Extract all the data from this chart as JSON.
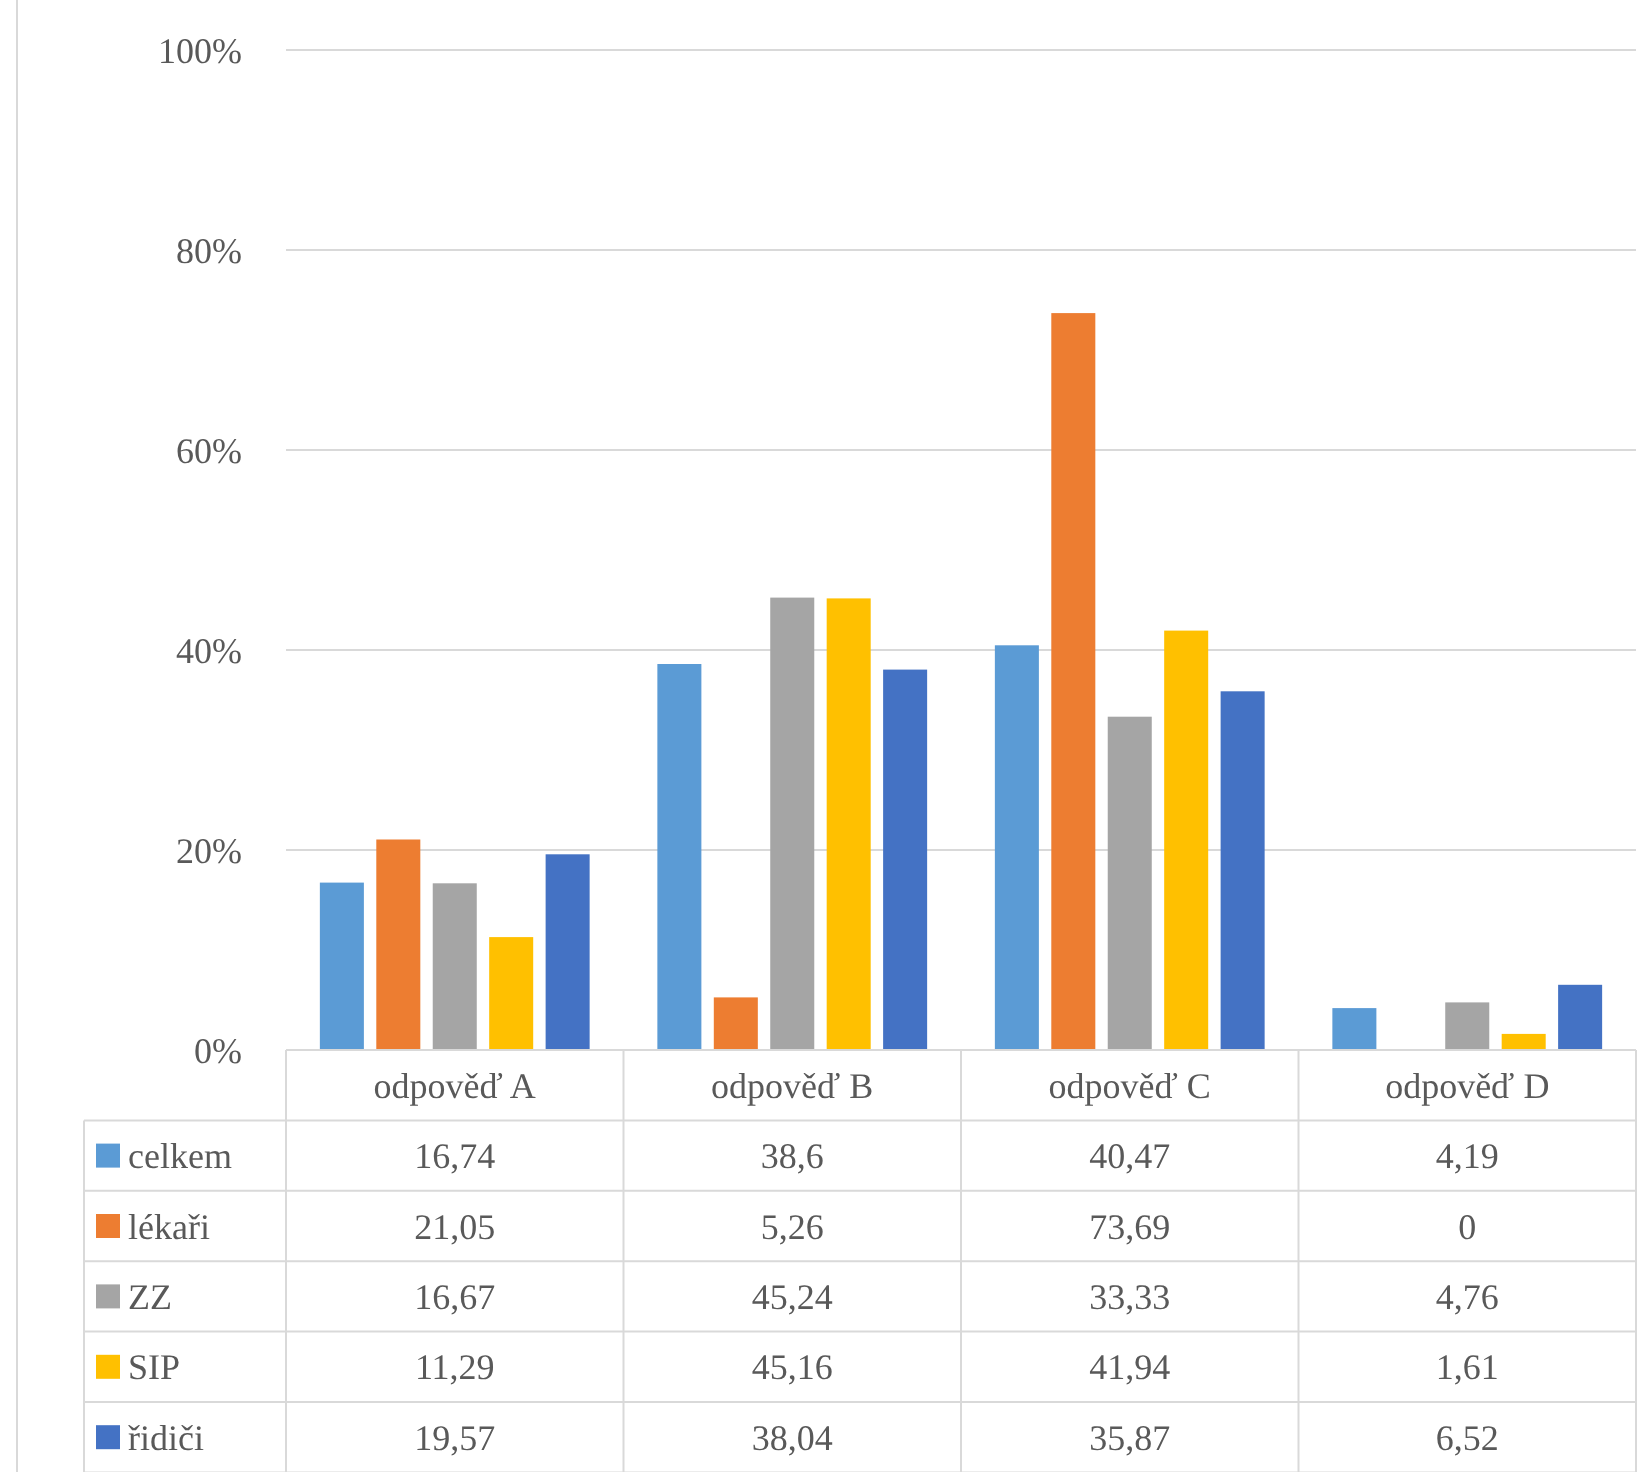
{
  "chart_data": {
    "type": "bar",
    "categories": [
      "odpověď A",
      "odpověď B",
      "odpověď C",
      "odpověď D"
    ],
    "series": [
      {
        "name": "celkem",
        "color": "#5b9bd5",
        "values": [
          16.74,
          38.6,
          40.47,
          4.19
        ],
        "value_labels": [
          "16,74",
          "38,6",
          "40,47",
          "4,19"
        ]
      },
      {
        "name": "lékaři",
        "color": "#ed7d31",
        "values": [
          21.05,
          5.26,
          73.69,
          0
        ],
        "value_labels": [
          "21,05",
          "5,26",
          "73,69",
          "0"
        ]
      },
      {
        "name": "ZZ",
        "color": "#a5a5a5",
        "values": [
          16.67,
          45.24,
          33.33,
          4.76
        ],
        "value_labels": [
          "16,67",
          "45,24",
          "33,33",
          "4,76"
        ]
      },
      {
        "name": "SIP",
        "color": "#ffc000",
        "values": [
          11.29,
          45.16,
          41.94,
          1.61
        ],
        "value_labels": [
          "11,29",
          "45,16",
          "41,94",
          "1,61"
        ]
      },
      {
        "name": "řidiči",
        "color": "#4472c4",
        "values": [
          19.57,
          38.04,
          35.87,
          6.52
        ],
        "value_labels": [
          "19,57",
          "38,04",
          "35,87",
          "6,52"
        ]
      }
    ],
    "ylim": [
      0,
      100
    ],
    "yticks": [
      {
        "value": 0,
        "label": "0%"
      },
      {
        "value": 20,
        "label": "20%"
      },
      {
        "value": 40,
        "label": "40%"
      },
      {
        "value": 60,
        "label": "60%"
      },
      {
        "value": 80,
        "label": "80%"
      },
      {
        "value": 100,
        "label": "100%"
      }
    ],
    "grid": "y",
    "legend": "bottom"
  }
}
